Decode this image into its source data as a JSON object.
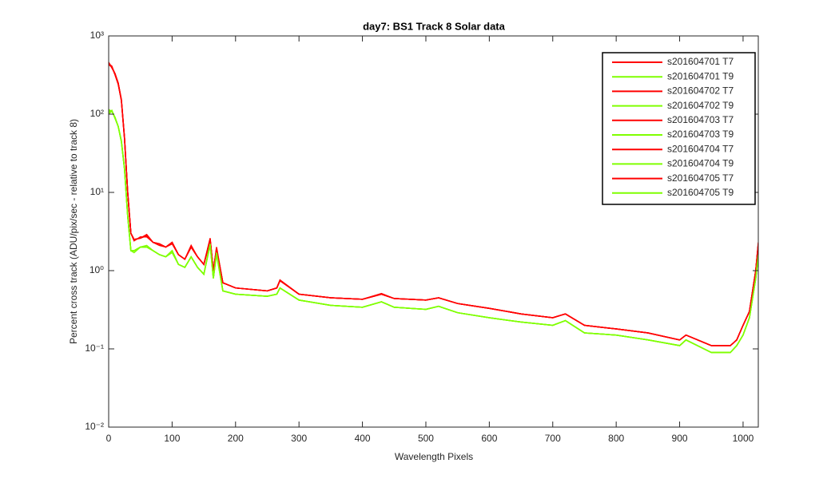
{
  "chart_data": {
    "type": "line",
    "title": "day7: BS1  Track 8 Solar data",
    "x_label": "Wavelength Pixels",
    "y_label": "Percent cross track (ADU/pix/sec - relative to track 8)",
    "y_scale": "log",
    "legend_position": "upper right",
    "grid": false,
    "xlim": [
      0,
      1024
    ],
    "xticks": [
      0,
      100,
      200,
      300,
      400,
      500,
      600,
      700,
      800,
      900,
      1000
    ],
    "ylim": [
      0.01,
      1000
    ],
    "yticks": [
      {
        "value": 0.01,
        "label": "10⁻²"
      },
      {
        "value": 0.1,
        "label": "10⁻¹"
      },
      {
        "value": 1,
        "label": "10⁰"
      },
      {
        "value": 10,
        "label": "10¹"
      },
      {
        "value": 100,
        "label": "10²"
      },
      {
        "value": 1000,
        "label": "10³"
      }
    ],
    "x": [
      0,
      5,
      10,
      15,
      20,
      25,
      30,
      35,
      40,
      50,
      60,
      70,
      80,
      90,
      100,
      110,
      120,
      130,
      140,
      150,
      160,
      165,
      170,
      180,
      200,
      250,
      265,
      270,
      300,
      350,
      400,
      430,
      450,
      500,
      520,
      550,
      600,
      650,
      700,
      720,
      750,
      800,
      850,
      900,
      910,
      950,
      980,
      990,
      1000,
      1010,
      1020,
      1024
    ],
    "series": [
      {
        "name": "s201604701 T7",
        "color": "#ff0000",
        "values": [
          450,
          400,
          330,
          250,
          150,
          50,
          10,
          3,
          2.5,
          2.6,
          2.8,
          2.3,
          2.2,
          2.0,
          2.3,
          1.6,
          1.4,
          2.0,
          1.5,
          1.2,
          2.5,
          1.0,
          1.9,
          0.7,
          0.6,
          0.55,
          0.6,
          0.75,
          0.5,
          0.45,
          0.43,
          0.5,
          0.44,
          0.42,
          0.45,
          0.38,
          0.33,
          0.28,
          0.25,
          0.28,
          0.2,
          0.18,
          0.16,
          0.13,
          0.15,
          0.11,
          0.11,
          0.13,
          0.2,
          0.3,
          1.0,
          2.2
        ]
      },
      {
        "name": "s201604701 T9",
        "color": "#7fff00",
        "values": [
          110,
          110,
          90,
          70,
          45,
          20,
          5,
          1.8,
          1.8,
          2.0,
          2.0,
          1.8,
          1.6,
          1.5,
          1.8,
          1.2,
          1.1,
          1.5,
          1.1,
          0.9,
          2.2,
          0.8,
          1.7,
          0.55,
          0.5,
          0.47,
          0.5,
          0.6,
          0.42,
          0.36,
          0.34,
          0.4,
          0.34,
          0.32,
          0.35,
          0.29,
          0.25,
          0.22,
          0.2,
          0.23,
          0.16,
          0.15,
          0.13,
          0.11,
          0.13,
          0.09,
          0.09,
          0.11,
          0.15,
          0.25,
          0.8,
          1.6
        ]
      },
      {
        "name": "s201604702 T7",
        "color": "#ff0000",
        "values": [
          440,
          410,
          320,
          240,
          150,
          48,
          10,
          3,
          2.4,
          2.7,
          2.7,
          2.3,
          2.1,
          2.0,
          2.2,
          1.6,
          1.4,
          2.1,
          1.5,
          1.2,
          2.4,
          1.0,
          1.9,
          0.7,
          0.6,
          0.55,
          0.6,
          0.74,
          0.5,
          0.45,
          0.43,
          0.51,
          0.44,
          0.42,
          0.45,
          0.38,
          0.33,
          0.28,
          0.25,
          0.28,
          0.2,
          0.18,
          0.16,
          0.13,
          0.15,
          0.11,
          0.11,
          0.13,
          0.2,
          0.3,
          1.0,
          2.1
        ]
      },
      {
        "name": "s201604702 T9",
        "color": "#7fff00",
        "values": [
          105,
          112,
          88,
          70,
          44,
          20,
          5,
          1.8,
          1.7,
          2.0,
          2.0,
          1.8,
          1.6,
          1.5,
          1.7,
          1.2,
          1.1,
          1.5,
          1.1,
          0.9,
          2.1,
          0.8,
          1.6,
          0.55,
          0.5,
          0.47,
          0.5,
          0.6,
          0.42,
          0.36,
          0.34,
          0.4,
          0.34,
          0.32,
          0.35,
          0.29,
          0.25,
          0.22,
          0.2,
          0.23,
          0.16,
          0.15,
          0.13,
          0.11,
          0.13,
          0.09,
          0.09,
          0.11,
          0.15,
          0.25,
          0.8,
          1.5
        ]
      },
      {
        "name": "s201604703 T7",
        "color": "#ff0000",
        "values": [
          460,
          390,
          330,
          250,
          155,
          50,
          10,
          3,
          2.5,
          2.6,
          2.9,
          2.3,
          2.2,
          2.0,
          2.3,
          1.6,
          1.4,
          2.0,
          1.5,
          1.2,
          2.6,
          1.0,
          2.0,
          0.7,
          0.6,
          0.55,
          0.6,
          0.76,
          0.5,
          0.45,
          0.43,
          0.5,
          0.44,
          0.42,
          0.45,
          0.38,
          0.33,
          0.28,
          0.25,
          0.28,
          0.2,
          0.18,
          0.16,
          0.13,
          0.15,
          0.11,
          0.11,
          0.13,
          0.2,
          0.3,
          1.0,
          2.3
        ]
      },
      {
        "name": "s201604703 T9",
        "color": "#7fff00",
        "values": [
          115,
          108,
          92,
          70,
          46,
          20,
          5,
          1.8,
          1.8,
          2.0,
          2.1,
          1.8,
          1.6,
          1.5,
          1.8,
          1.2,
          1.1,
          1.5,
          1.1,
          0.9,
          2.2,
          0.8,
          1.7,
          0.55,
          0.5,
          0.47,
          0.5,
          0.6,
          0.42,
          0.36,
          0.34,
          0.4,
          0.34,
          0.32,
          0.35,
          0.29,
          0.25,
          0.22,
          0.2,
          0.23,
          0.16,
          0.15,
          0.13,
          0.11,
          0.13,
          0.09,
          0.09,
          0.11,
          0.15,
          0.25,
          0.8,
          1.6
        ]
      },
      {
        "name": "s201604704 T7",
        "color": "#ff0000",
        "values": [
          450,
          400,
          330,
          250,
          150,
          50,
          10,
          3,
          2.5,
          2.6,
          2.8,
          2.3,
          2.2,
          2.0,
          2.3,
          1.6,
          1.4,
          2.0,
          1.5,
          1.2,
          2.5,
          1.0,
          1.9,
          0.7,
          0.6,
          0.55,
          0.6,
          0.75,
          0.5,
          0.45,
          0.43,
          0.5,
          0.44,
          0.42,
          0.45,
          0.38,
          0.33,
          0.28,
          0.25,
          0.28,
          0.2,
          0.18,
          0.16,
          0.13,
          0.15,
          0.11,
          0.11,
          0.13,
          0.2,
          0.3,
          1.0,
          2.2
        ]
      },
      {
        "name": "s201604704 T9",
        "color": "#7fff00",
        "values": [
          110,
          110,
          90,
          70,
          45,
          20,
          5,
          1.8,
          1.8,
          2.0,
          2.0,
          1.8,
          1.6,
          1.5,
          1.8,
          1.2,
          1.1,
          1.5,
          1.1,
          0.9,
          2.2,
          0.8,
          1.7,
          0.55,
          0.5,
          0.47,
          0.5,
          0.6,
          0.42,
          0.36,
          0.34,
          0.4,
          0.34,
          0.32,
          0.35,
          0.29,
          0.25,
          0.22,
          0.2,
          0.23,
          0.16,
          0.15,
          0.13,
          0.11,
          0.13,
          0.09,
          0.09,
          0.11,
          0.15,
          0.25,
          0.8,
          1.6
        ]
      },
      {
        "name": "s201604705 T7",
        "color": "#ff0000",
        "values": [
          430,
          400,
          320,
          245,
          150,
          50,
          10,
          3,
          2.5,
          2.6,
          2.8,
          2.3,
          2.2,
          2.0,
          2.3,
          1.6,
          1.4,
          2.0,
          1.5,
          1.2,
          2.5,
          1.0,
          1.9,
          0.7,
          0.6,
          0.55,
          0.6,
          0.75,
          0.5,
          0.45,
          0.43,
          0.5,
          0.44,
          0.42,
          0.45,
          0.38,
          0.33,
          0.28,
          0.25,
          0.28,
          0.2,
          0.18,
          0.16,
          0.13,
          0.15,
          0.11,
          0.11,
          0.13,
          0.2,
          0.3,
          1.0,
          2.2
        ]
      },
      {
        "name": "s201604705 T9",
        "color": "#7fff00",
        "values": [
          100,
          110,
          90,
          70,
          45,
          20,
          5,
          1.8,
          1.8,
          2.0,
          2.0,
          1.8,
          1.6,
          1.5,
          1.8,
          1.2,
          1.1,
          1.5,
          1.1,
          0.9,
          2.2,
          0.8,
          1.7,
          0.55,
          0.5,
          0.47,
          0.5,
          0.6,
          0.42,
          0.36,
          0.34,
          0.4,
          0.34,
          0.32,
          0.35,
          0.29,
          0.25,
          0.22,
          0.2,
          0.23,
          0.16,
          0.15,
          0.13,
          0.11,
          0.13,
          0.09,
          0.09,
          0.11,
          0.15,
          0.25,
          0.8,
          1.6
        ]
      }
    ]
  }
}
